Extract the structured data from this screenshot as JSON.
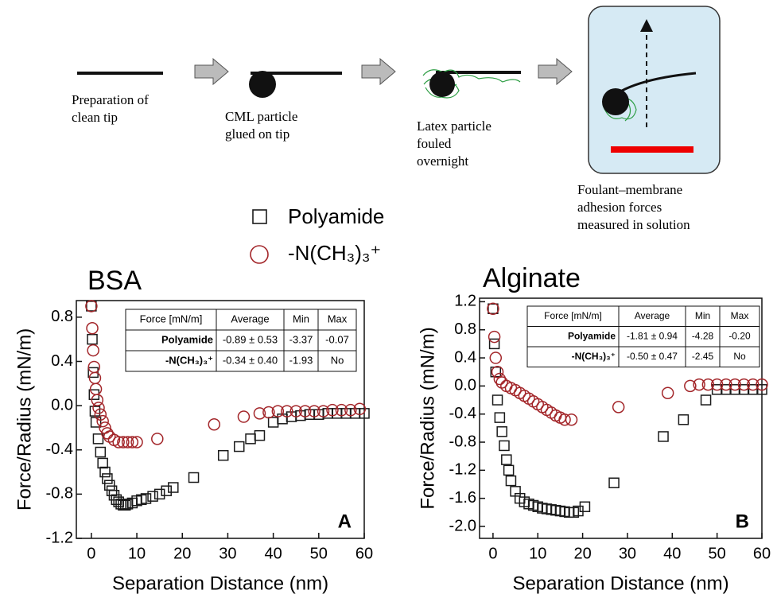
{
  "schematic": {
    "steps": [
      {
        "lines": [
          "Preparation of",
          "clean tip"
        ]
      },
      {
        "lines": [
          "CML particle",
          "glued on tip"
        ]
      },
      {
        "lines": [
          "Latex particle",
          "fouled",
          "overnight"
        ]
      },
      {
        "lines": [
          "Foulant–membrane",
          "adhesion forces",
          "measured in solution"
        ]
      }
    ]
  },
  "chart_data": [
    {
      "type": "scatter",
      "title": "BSA",
      "panel": "A",
      "x_label": "Separation Distance (nm)",
      "y_label": "Force/Radius (mN/m)",
      "xlim": [
        -3.3,
        60
      ],
      "ylim": [
        -1.2,
        0.95
      ],
      "xticks": [
        0,
        10,
        20,
        30,
        40,
        50,
        60
      ],
      "yticks": [
        -1.2,
        {
          "value": -0.8,
          "label": "-0.8"
        },
        {
          "value": -0.4,
          "label": "-0.4"
        },
        {
          "value": 0,
          "label": "0.0"
        },
        0.4,
        0.8
      ],
      "series": [
        {
          "name": "Polyamide",
          "color": "#1a1a1a",
          "marker": "square",
          "x": [
            0,
            0.2,
            0.4,
            0.6,
            0.8,
            1,
            1.5,
            2,
            2.5,
            3,
            3.5,
            4,
            4.5,
            5,
            5.5,
            6,
            6.5,
            7,
            7.5,
            8,
            9,
            10,
            11,
            12,
            13.5,
            15,
            16.5,
            18,
            22.5,
            29,
            32.5,
            35,
            37,
            40,
            42,
            44,
            46,
            48,
            50,
            52,
            54,
            56,
            58,
            60
          ],
          "values": [
            0.9,
            0.6,
            0.3,
            0.1,
            -0.05,
            -0.15,
            -0.3,
            -0.42,
            -0.52,
            -0.6,
            -0.66,
            -0.72,
            -0.77,
            -0.81,
            -0.85,
            -0.87,
            -0.89,
            -0.9,
            -0.9,
            -0.89,
            -0.88,
            -0.86,
            -0.85,
            -0.84,
            -0.82,
            -0.8,
            -0.77,
            -0.74,
            -0.65,
            -0.45,
            -0.37,
            -0.3,
            -0.27,
            -0.15,
            -0.12,
            -0.1,
            -0.09,
            -0.08,
            -0.08,
            -0.07,
            -0.07,
            -0.07,
            -0.07,
            -0.07
          ]
        },
        {
          "name": "-N(CH₃)₃⁺",
          "color": "#a3262a",
          "marker": "circle",
          "x": [
            0,
            0.2,
            0.4,
            0.6,
            0.8,
            1,
            1.3,
            1.6,
            2,
            2.5,
            3,
            3.5,
            4,
            5,
            6,
            7,
            8,
            9,
            10,
            14.5,
            27,
            33.5,
            37,
            39,
            41,
            43,
            45,
            47,
            49,
            51,
            53,
            55,
            57,
            59
          ],
          "values": [
            0.9,
            0.7,
            0.5,
            0.35,
            0.25,
            0.15,
            0.05,
            -0.02,
            -0.08,
            -0.14,
            -0.2,
            -0.25,
            -0.28,
            -0.31,
            -0.33,
            -0.33,
            -0.33,
            -0.33,
            -0.33,
            -0.3,
            -0.17,
            -0.1,
            -0.07,
            -0.06,
            -0.05,
            -0.05,
            -0.05,
            -0.05,
            -0.05,
            -0.05,
            -0.04,
            -0.04,
            -0.04,
            -0.03
          ]
        }
      ],
      "table": {
        "header": [
          "Force [mN/m]",
          "Average",
          "Min",
          "Max"
        ],
        "rows": [
          [
            "Polyamide",
            "-0.89 ± 0.53",
            "-3.37",
            "-0.07"
          ],
          [
            "-N(CH₃)₃⁺",
            "-0.34 ± 0.40",
            "-1.93",
            "No"
          ]
        ]
      }
    },
    {
      "type": "scatter",
      "title": "Alginate",
      "panel": "B",
      "x_label": "Separation Distance (nm)",
      "y_label": "Force/Radius (mN/m)",
      "xlim": [
        -3,
        60
      ],
      "ylim": [
        -2.17,
        1.25
      ],
      "xticks": [
        0,
        10,
        20,
        30,
        40,
        50,
        60
      ],
      "yticks": [
        {
          "value": -2,
          "label": "-2.0"
        },
        -1.6,
        -1.2,
        {
          "value": -0.8,
          "label": "-0.8"
        },
        {
          "value": -0.4,
          "label": "-0.4"
        },
        {
          "value": 0,
          "label": "0.0"
        },
        0.4,
        0.8,
        1.2
      ],
      "series": [
        {
          "color": "#1a1a1a",
          "marker": "square",
          "x": [
            0,
            0.3,
            0.6,
            1,
            1.5,
            2,
            2.5,
            3,
            3.5,
            4,
            5,
            6,
            7,
            8,
            9,
            10,
            11,
            12,
            13,
            14,
            15,
            16,
            17,
            18,
            19,
            20.5,
            27,
            38,
            42.5,
            47.5,
            50,
            52,
            54,
            56,
            58,
            60
          ],
          "values": [
            1.1,
            0.6,
            0.2,
            -0.2,
            -0.45,
            -0.65,
            -0.85,
            -1.05,
            -1.2,
            -1.35,
            -1.5,
            -1.6,
            -1.65,
            -1.68,
            -1.7,
            -1.72,
            -1.74,
            -1.75,
            -1.76,
            -1.77,
            -1.78,
            -1.79,
            -1.8,
            -1.8,
            -1.78,
            -1.72,
            -1.38,
            -0.72,
            -0.48,
            -0.2,
            -0.05,
            -0.05,
            -0.05,
            -0.05,
            -0.05,
            -0.05
          ]
        },
        {
          "color": "#a3262a",
          "marker": "circle",
          "x": [
            0,
            0.3,
            0.6,
            1,
            1.5,
            2,
            3,
            4,
            5,
            6,
            7,
            8,
            9,
            10,
            11,
            12,
            13,
            14,
            15,
            16,
            17.5,
            28,
            39,
            44,
            46,
            48,
            50,
            52,
            54,
            56,
            58,
            60
          ],
          "values": [
            1.1,
            0.7,
            0.4,
            0.2,
            0.1,
            0.05,
            0,
            -0.03,
            -0.06,
            -0.1,
            -0.14,
            -0.18,
            -0.22,
            -0.26,
            -0.3,
            -0.34,
            -0.38,
            -0.42,
            -0.45,
            -0.48,
            -0.48,
            -0.3,
            -0.1,
            0,
            0.02,
            0.02,
            0.02,
            0.02,
            0.02,
            0.02,
            0.02,
            0.02
          ]
        }
      ],
      "table": {
        "header": [
          "Force [mN/m]",
          "Average",
          "Min",
          "Max"
        ],
        "rows": [
          [
            "Polyamide",
            "-1.81 ± 0.94",
            "-4.28",
            "-0.20"
          ],
          [
            "-N(CH₃)₃⁺",
            "-0.50 ± 0.47",
            "-2.45",
            "No"
          ]
        ]
      }
    }
  ]
}
